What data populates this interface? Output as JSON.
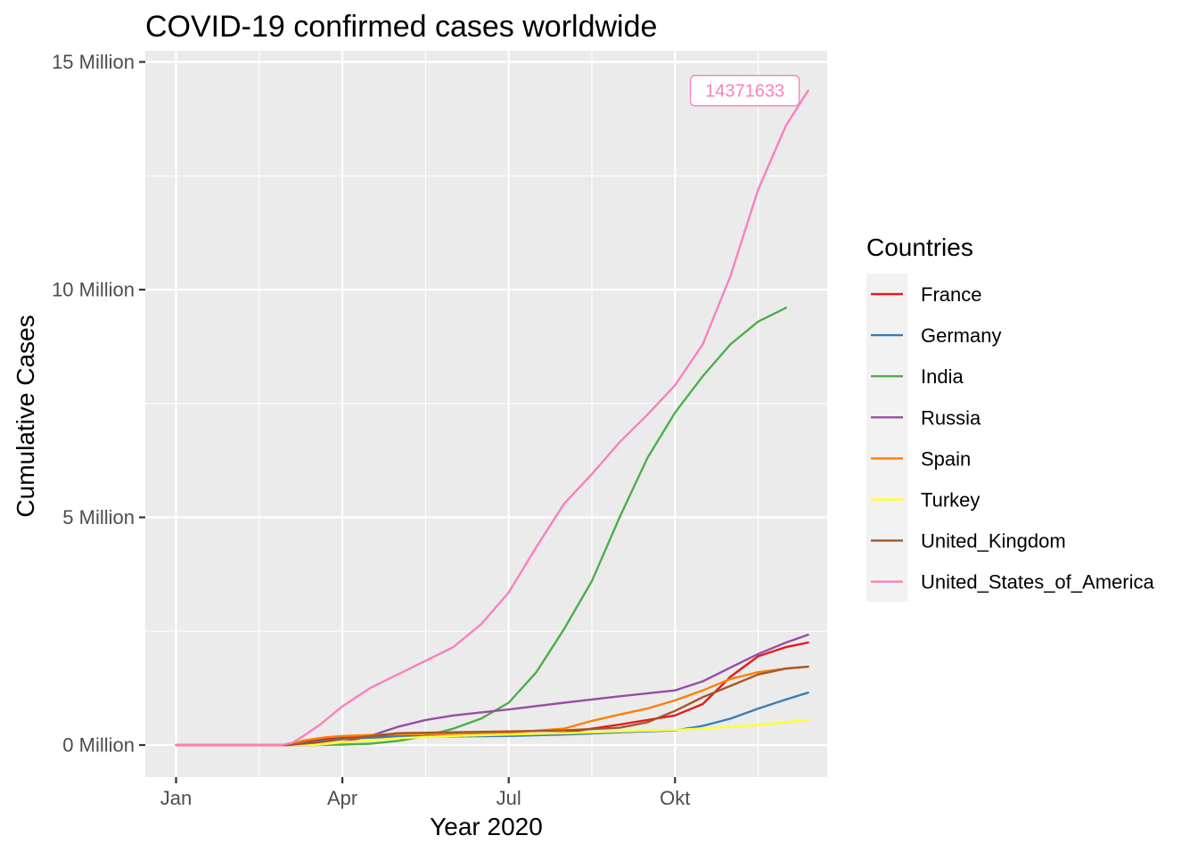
{
  "chart_data": {
    "type": "line",
    "title": "COVID-19 confirmed cases worldwide",
    "xlabel": "Year 2020",
    "ylabel": "Cumulative Cases",
    "x_ticks": [
      "Jan",
      "Apr",
      "Jul",
      "Okt"
    ],
    "y_ticks": [
      "0 Million",
      "5 Million",
      "10 Million",
      "15 Million"
    ],
    "ylim_million": [
      -0.7,
      15.1
    ],
    "x_unit": "month of 2020 (1 = Jan 1)",
    "y_unit": "million cases",
    "grid": true,
    "legend": {
      "title": "Countries",
      "position": "right"
    },
    "annotation": {
      "text": "14371633",
      "series": "United_States_of_America",
      "color": "#f781bf"
    },
    "series": [
      {
        "name": "France",
        "color": "#e41a1c",
        "points": [
          [
            1.0,
            0
          ],
          [
            2.9,
            0
          ],
          [
            3.0,
            0.02
          ],
          [
            3.5,
            0.1
          ],
          [
            4.0,
            0.17
          ],
          [
            5.0,
            0.19
          ],
          [
            6.0,
            0.2
          ],
          [
            7.0,
            0.22
          ],
          [
            8.0,
            0.27
          ],
          [
            9.0,
            0.45
          ],
          [
            10.0,
            0.65
          ],
          [
            10.5,
            0.9
          ],
          [
            11.0,
            1.5
          ],
          [
            11.5,
            1.95
          ],
          [
            12.0,
            2.15
          ],
          [
            12.4,
            2.25
          ]
        ]
      },
      {
        "name": "Germany",
        "color": "#377eb8",
        "points": [
          [
            1.0,
            0
          ],
          [
            3.0,
            0
          ],
          [
            3.5,
            0.07
          ],
          [
            4.0,
            0.14
          ],
          [
            5.0,
            0.18
          ],
          [
            6.0,
            0.19
          ],
          [
            7.0,
            0.2
          ],
          [
            8.0,
            0.23
          ],
          [
            9.0,
            0.28
          ],
          [
            10.0,
            0.32
          ],
          [
            10.5,
            0.42
          ],
          [
            11.0,
            0.58
          ],
          [
            11.5,
            0.8
          ],
          [
            12.0,
            1.0
          ],
          [
            12.4,
            1.15
          ]
        ]
      },
      {
        "name": "India",
        "color": "#4daf4a",
        "points": [
          [
            1.0,
            0
          ],
          [
            3.5,
            0
          ],
          [
            4.0,
            0.01
          ],
          [
            4.5,
            0.03
          ],
          [
            5.0,
            0.09
          ],
          [
            5.5,
            0.2
          ],
          [
            6.0,
            0.36
          ],
          [
            6.5,
            0.58
          ],
          [
            7.0,
            0.93
          ],
          [
            7.5,
            1.6
          ],
          [
            8.0,
            2.55
          ],
          [
            8.5,
            3.6
          ],
          [
            9.0,
            5.0
          ],
          [
            9.5,
            6.3
          ],
          [
            10.0,
            7.3
          ],
          [
            10.5,
            8.1
          ],
          [
            11.0,
            8.8
          ],
          [
            11.5,
            9.3
          ],
          [
            12.0,
            9.6
          ]
        ]
      },
      {
        "name": "Russia",
        "color": "#984ea3",
        "points": [
          [
            1.0,
            0
          ],
          [
            3.5,
            0
          ],
          [
            4.0,
            0.06
          ],
          [
            4.5,
            0.2
          ],
          [
            5.0,
            0.4
          ],
          [
            5.5,
            0.55
          ],
          [
            6.0,
            0.65
          ],
          [
            7.0,
            0.78
          ],
          [
            8.0,
            0.93
          ],
          [
            9.0,
            1.07
          ],
          [
            10.0,
            1.2
          ],
          [
            10.5,
            1.4
          ],
          [
            11.0,
            1.7
          ],
          [
            11.5,
            2.0
          ],
          [
            12.0,
            2.25
          ],
          [
            12.4,
            2.42
          ]
        ]
      },
      {
        "name": "Spain",
        "color": "#ff7f00",
        "points": [
          [
            1.0,
            0
          ],
          [
            3.0,
            0
          ],
          [
            3.3,
            0.1
          ],
          [
            3.7,
            0.17
          ],
          [
            4.0,
            0.2
          ],
          [
            5.0,
            0.24
          ],
          [
            6.0,
            0.25
          ],
          [
            7.0,
            0.27
          ],
          [
            8.0,
            0.36
          ],
          [
            8.5,
            0.53
          ],
          [
            9.0,
            0.67
          ],
          [
            9.5,
            0.8
          ],
          [
            10.0,
            0.98
          ],
          [
            10.5,
            1.2
          ],
          [
            11.0,
            1.45
          ],
          [
            11.5,
            1.6
          ],
          [
            12.0,
            1.68
          ],
          [
            12.4,
            1.72
          ]
        ]
      },
      {
        "name": "Turkey",
        "color": "#ffff33",
        "points": [
          [
            1.0,
            0
          ],
          [
            3.5,
            0
          ],
          [
            4.0,
            0.06
          ],
          [
            5.0,
            0.15
          ],
          [
            6.0,
            0.2
          ],
          [
            7.0,
            0.23
          ],
          [
            8.0,
            0.26
          ],
          [
            9.0,
            0.3
          ],
          [
            10.0,
            0.33
          ],
          [
            11.0,
            0.4
          ],
          [
            11.5,
            0.44
          ],
          [
            12.0,
            0.5
          ],
          [
            12.4,
            0.55
          ]
        ]
      },
      {
        "name": "United_Kingdom",
        "color": "#a65628",
        "points": [
          [
            1.0,
            0
          ],
          [
            3.0,
            0
          ],
          [
            3.5,
            0.05
          ],
          [
            4.0,
            0.13
          ],
          [
            5.0,
            0.26
          ],
          [
            6.0,
            0.28
          ],
          [
            7.0,
            0.3
          ],
          [
            8.0,
            0.32
          ],
          [
            9.0,
            0.38
          ],
          [
            9.5,
            0.5
          ],
          [
            10.0,
            0.75
          ],
          [
            10.5,
            1.05
          ],
          [
            11.0,
            1.3
          ],
          [
            11.5,
            1.55
          ],
          [
            12.0,
            1.68
          ],
          [
            12.4,
            1.72
          ]
        ]
      },
      {
        "name": "United_States_of_America",
        "color": "#f781bf",
        "points": [
          [
            1.0,
            0
          ],
          [
            2.9,
            0
          ],
          [
            3.1,
            0.05
          ],
          [
            3.3,
            0.2
          ],
          [
            3.6,
            0.45
          ],
          [
            4.0,
            0.85
          ],
          [
            4.5,
            1.25
          ],
          [
            5.0,
            1.55
          ],
          [
            5.5,
            1.85
          ],
          [
            6.0,
            2.15
          ],
          [
            6.5,
            2.65
          ],
          [
            7.0,
            3.35
          ],
          [
            7.5,
            4.35
          ],
          [
            8.0,
            5.3
          ],
          [
            8.5,
            5.95
          ],
          [
            9.0,
            6.65
          ],
          [
            9.5,
            7.25
          ],
          [
            10.0,
            7.9
          ],
          [
            10.5,
            8.8
          ],
          [
            11.0,
            10.3
          ],
          [
            11.5,
            12.2
          ],
          [
            12.0,
            13.6
          ],
          [
            12.4,
            14.37
          ]
        ]
      }
    ]
  }
}
